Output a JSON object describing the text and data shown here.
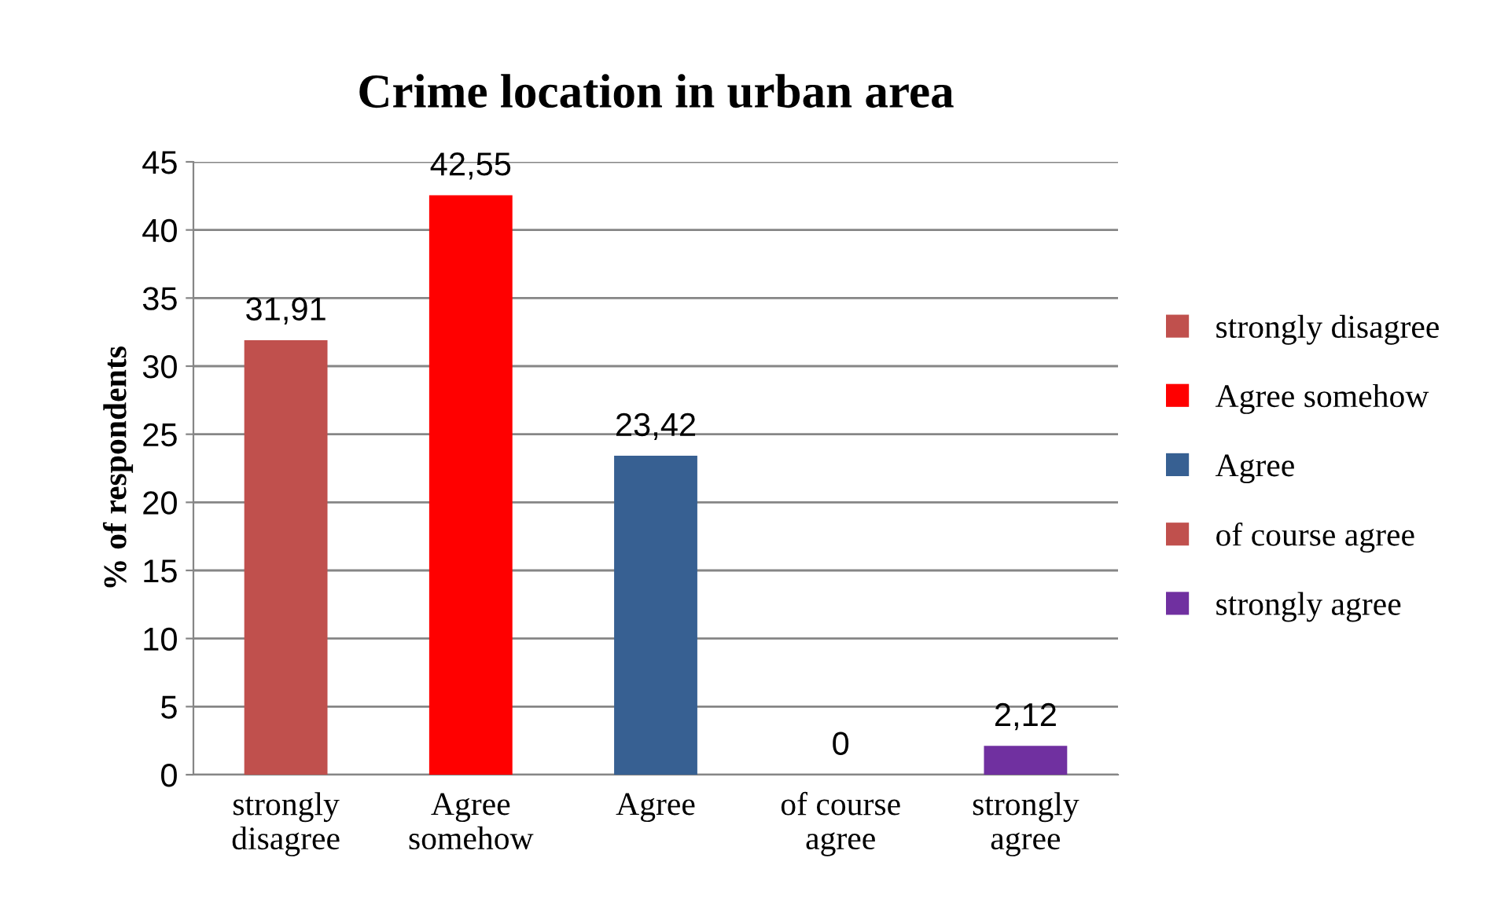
{
  "chart_data": {
    "type": "bar",
    "title": "Crime location in urban area",
    "ylabel": "% of respondents",
    "categories": [
      "strongly\ndisagree",
      "Agree\nsomehow",
      "Agree",
      "of course\nagree",
      "strongly\nagree"
    ],
    "series": [
      {
        "name": "strongly disagree",
        "color": "#c0504d",
        "values": [
          31.91,
          null,
          null,
          null,
          null
        ],
        "value_labels": [
          "31,91",
          null,
          null,
          null,
          null
        ]
      },
      {
        "name": "Agree somehow",
        "color": "#ff0000",
        "values": [
          null,
          42.55,
          null,
          null,
          null
        ],
        "value_labels": [
          null,
          "42,55",
          null,
          null,
          null
        ]
      },
      {
        "name": "Agree",
        "color": "#376092",
        "values": [
          null,
          null,
          23.42,
          null,
          null
        ],
        "value_labels": [
          null,
          null,
          "23,42",
          null,
          null
        ]
      },
      {
        "name": "of course agree",
        "color": "#c0504d",
        "values": [
          null,
          null,
          null,
          0,
          null
        ],
        "value_labels": [
          null,
          null,
          null,
          "0",
          null
        ]
      },
      {
        "name": "strongly agree",
        "color": "#7030a0",
        "values": [
          null,
          null,
          null,
          null,
          2.12
        ],
        "value_labels": [
          null,
          null,
          null,
          null,
          "2,12"
        ]
      }
    ],
    "ylim": [
      0,
      45
    ],
    "yticks": [
      0,
      5,
      10,
      15,
      20,
      25,
      30,
      35,
      40,
      45
    ],
    "grid": "y",
    "legend": "right"
  }
}
